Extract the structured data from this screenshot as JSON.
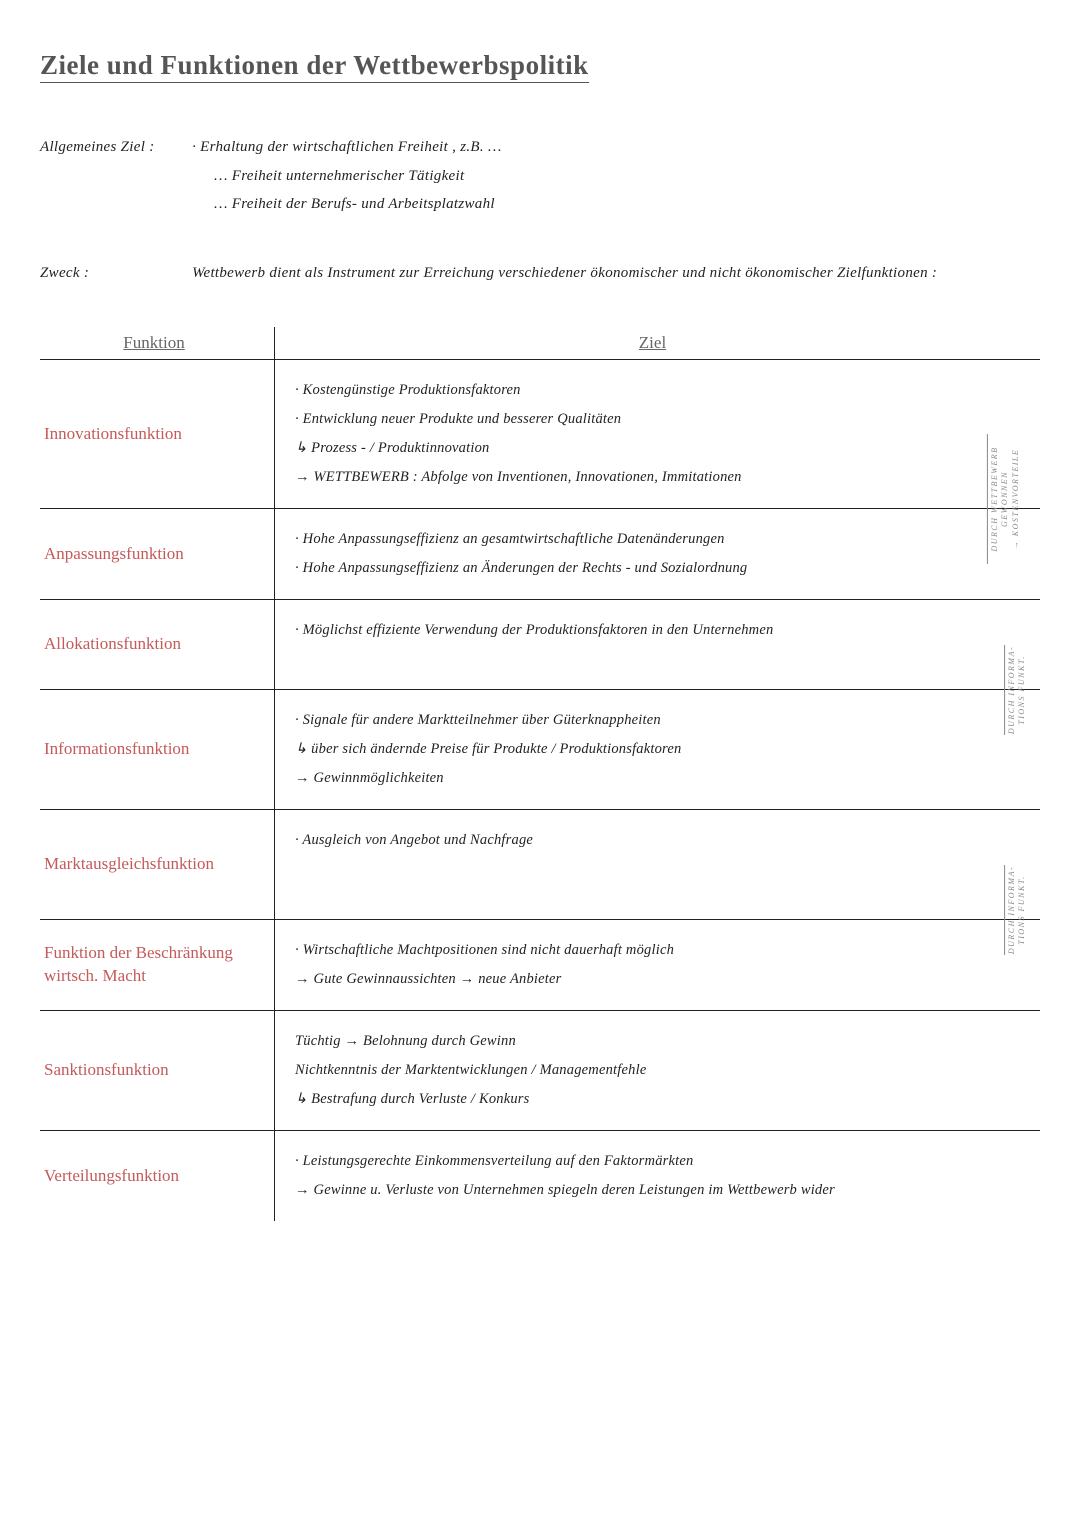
{
  "title": "Ziele und Funktionen der Wettbewerbspolitik",
  "intro": {
    "allgemeines": {
      "label": "Allgemeines Ziel :",
      "line1": "· Erhaltung der wirtschaftlichen Freiheit , z.B. …",
      "line2": "… Freiheit unternehmerischer Tätigkeit",
      "line3": "… Freiheit der Berufs- und Arbeitsplatzwahl"
    },
    "zweck": {
      "label": "Zweck :",
      "text": "Wettbewerb dient als Instrument zur Erreichung verschiedener ökonomischer und nicht ökonomischer Zielfunktionen :"
    }
  },
  "table": {
    "header": {
      "func": "Funktion",
      "goal": "Ziel"
    },
    "rows": [
      {
        "func": "Innovationsfunktion",
        "goal": "· Kostengünstige Produktionsfaktoren\n· Entwicklung neuer Produkte und besserer Qualitäten\n↳ Prozess - / Produktinnovation\n→ WETTBEWERB : Abfolge von Inventionen, Innovationen, Immitationen",
        "side": "DURCH WETTBEWERB\nGEWONNEN\n→ KOSTENVORTEILE"
      },
      {
        "func": "Anpassungsfunktion",
        "goal": "· Hohe Anpassungseffizienz an gesamtwirtschaftliche Datenänderungen\n· Hohe Anpassungseffizienz an Änderungen der Rechts - und Sozialordnung"
      },
      {
        "func": "Allokationsfunktion",
        "goal": "· Möglichst effiziente Verwendung der Produktionsfaktoren in den Unternehmen",
        "side": "DURCH INFORMA-\nTIONS FUNKT."
      },
      {
        "func": "Informationsfunktion",
        "goal": "· Signale für andere Marktteilnehmer über Güterknappheiten\n↳ über sich ändernde Preise für Produkte / Produktionsfaktoren\n→ Gewinnmöglichkeiten"
      },
      {
        "func": "Marktausgleichsfunktion",
        "goal": "· Ausgleich von Angebot und Nachfrage",
        "side": "DURCH INFORMA-\nTIONS FUNKT."
      },
      {
        "func": "Funktion der Beschränkung wirtsch. Macht",
        "goal": "· Wirtschaftliche Machtpositionen sind nicht dauerhaft möglich\n→ Gute Gewinnaussichten → neue Anbieter"
      },
      {
        "func": "Sanktionsfunktion",
        "goal": "Tüchtig → Belohnung durch Gewinn\nNichtkenntnis der Marktentwicklungen / Managementfehle\n↳ Bestrafung durch Verluste / Konkurs"
      },
      {
        "func": "Verteilungsfunktion",
        "goal": "· Leistungsgerechte Einkommensverteilung auf den Faktormärkten\n→ Gewinne u. Verluste von Unternehmen spiegeln deren Leistungen im Wettbewerb wider"
      }
    ]
  },
  "colors": {
    "title": "#555555",
    "func": "#c45a5a",
    "text": "#222222",
    "side": "#888888",
    "border": "#222222",
    "background": "#ffffff"
  }
}
